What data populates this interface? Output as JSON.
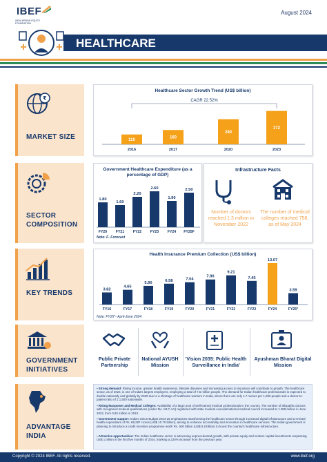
{
  "header": {
    "logo": "IBEF",
    "logo_sub": "INDIA BRAND EQUITY FOUNDATION",
    "date": "August 2024",
    "title": "HEALTHCARE"
  },
  "sections": {
    "market_size": "MARKET SIZE",
    "sector_composition": "SECTOR COMPOSITION",
    "key_trends": "KEY TRENDS",
    "government_initiatives": "GOVERNMENT INITIATIVES",
    "advantage_india": "ADVANTAGE INDIA"
  },
  "market": {
    "chart_title": "Healthcare Sector Growth Trend (US$ billion)",
    "cagr": "CAGR 22.52%"
  },
  "composition": {
    "expenditure_title": "Government Healthcare Expenditure (as a percentage of GDP)",
    "note": "Note: F- Forecast",
    "infra_title": "Infrastructure Facts",
    "fact_doctors": "Number of doctors reached 1.3 million in November 2022",
    "fact_colleges": "The number of medical colleges reached 758, as of May 2024"
  },
  "trends": {
    "chart_title": "Health Insurance Premium Collection (US$ billion)",
    "note": "Note: FY25*- April-June 2024"
  },
  "government": {
    "items": [
      "Public Private Partnership",
      "National AYUSH Mission",
      "'Vision 2035: Public Health Surveillance in India'",
      "Ayushman Bharat Digital Mission"
    ]
  },
  "advantage": {
    "items": [
      {
        "head": "Strong demand:",
        "text": "Rising income, greater health awareness, lifestyle diseases and increasing access to insurance will contribute to growth. The healthcare sector, as of 2024, is one of India's largest employers, employing a total of 7.5 million people. The demand for Indian healthcare professionals is expected to double nationally and globally by 2030 due to a shortage of healthcare workers in India, where there are only 1.7 nurses per 1,000 people and a doctor-to-patient ratio of 1:1,500 nationwide."
      },
      {
        "head": "Rising Manpower and Medical Colleges:",
        "text": "Availability of a large pool of well-trained medical professionals in the country. The number of allopathic doctors with recognised medical qualifications (under the I.M.C Act) registered with state medical councils/national medical council increased to 1.308 million in June 2022, from 0.83 million in 2010."
      },
      {
        "head": "Government support:",
        "text": "India's Union Budget 2024-25 emphasises transforming the healthcare sector through increased digital infrastructure and a revised health expenditure of Rs. 89,287 crores (US$ 10.70 billion), aiming to enhance accessibility and innovation in healthcare services. The Indian government is planning to introduce a credit incentive programme worth Rs. 500 billion (US$ 6.8 billion) to boost the country's healthcare infrastructure."
      },
      {
        "head": "Attractive opportunities:",
        "text": "The Indian healthcare sector is witnessing unprecedented growth, with private equity and venture capital investments surpassing US$ 1 billion in the first five months of 2024, marking a 220% increase from the previous year."
      }
    ]
  },
  "footer": {
    "copyright": "Copyright © 2024 IBEF. All rights reserved.",
    "site": "www.ibef.org"
  },
  "chart_data": [
    {
      "type": "bar",
      "title": "Healthcare Sector Growth Trend (US$ billion)",
      "categories": [
        "2016",
        "2017",
        "2020",
        "2023"
      ],
      "values": [
        110,
        160,
        280,
        372
      ],
      "annotation": "CAGR 22.52%",
      "color": "#f5a11a"
    },
    {
      "type": "bar",
      "title": "Government Healthcare Expenditure (as a percentage of GDP)",
      "categories": [
        "FY20",
        "FY21",
        "FY22",
        "FY23",
        "FY24",
        "FY25F"
      ],
      "values": [
        1.8,
        1.6,
        2.2,
        2.6,
        1.9,
        2.5
      ],
      "labels": [
        "1.80",
        "1.60",
        "2.20",
        "2.60",
        "1.90",
        "2.50"
      ],
      "color": "#16386b"
    },
    {
      "type": "bar",
      "title": "Health Insurance Premium Collection (US$ billion)",
      "categories": [
        "FY16",
        "FY17",
        "FY18",
        "FY19",
        "FY20",
        "FY21",
        "FY22",
        "FY23",
        "FY24",
        "FY25*"
      ],
      "values": [
        3.82,
        4.65,
        5.9,
        6.58,
        7.04,
        7.9,
        9.21,
        7.45,
        13.07,
        3.59
      ],
      "labels": [
        "3.82",
        "4.65",
        "5.90",
        "6.58",
        "7.04",
        "7.90",
        "9.21",
        "7.45",
        "13.07",
        "3.59"
      ],
      "highlight_index": 8,
      "color": "#16386b",
      "highlight_color": "#f5a11a"
    }
  ]
}
